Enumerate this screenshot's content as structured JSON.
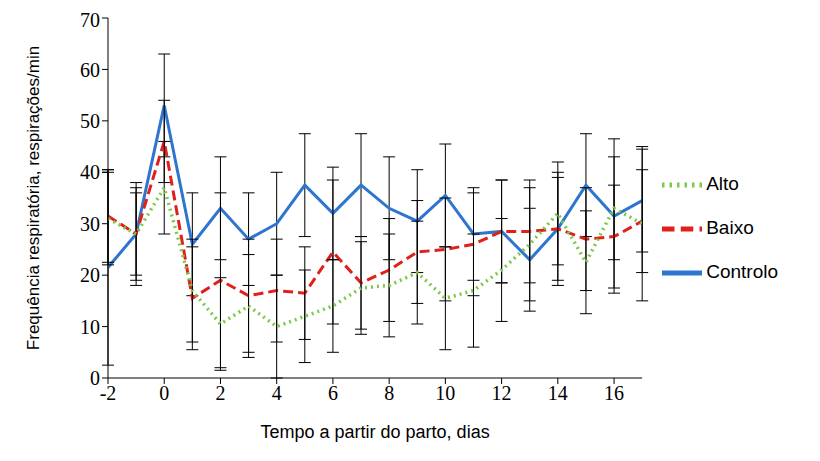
{
  "chart_data": {
    "type": "line",
    "x_label": "Tempo a partir do parto, dias",
    "y_label": "Frequência respiratória, respirações/min",
    "x": [
      -2,
      -1,
      0,
      1,
      2,
      3,
      4,
      5,
      6,
      7,
      8,
      9,
      10,
      11,
      12,
      13,
      14,
      15,
      16,
      17
    ],
    "xlim": [
      -2,
      17
    ],
    "xticks": [
      -2,
      0,
      2,
      4,
      6,
      8,
      10,
      12,
      14,
      16
    ],
    "ylim": [
      0,
      70
    ],
    "yticks": [
      0,
      10,
      20,
      30,
      40,
      50,
      60,
      70
    ],
    "grid": false,
    "legend": "right",
    "series": [
      {
        "name": "Controlo",
        "color": "#2E75D0",
        "line_style": "solid",
        "marker": "none",
        "values": [
          21.5,
          28,
          53,
          26,
          33,
          27,
          30,
          37.5,
          32,
          37.5,
          33,
          30.5,
          35.5,
          28,
          28.5,
          23,
          29,
          37.5,
          31.5,
          34.5
        ],
        "error": [
          19,
          9,
          10,
          10,
          10,
          9,
          10,
          10,
          9,
          10,
          10,
          10,
          10,
          9,
          10,
          10,
          11,
          10,
          15,
          10
        ]
      },
      {
        "name": "Baixo",
        "color": "#E0201B",
        "line_style": "dashed",
        "marker": "none",
        "values": [
          31.5,
          28,
          46,
          15.5,
          19,
          16,
          17,
          16.5,
          24.5,
          18.5,
          21,
          24.5,
          25,
          26,
          28.5,
          28.5,
          29,
          27,
          27.5,
          30.5
        ],
        "error": [
          9,
          10,
          8,
          10,
          17,
          11,
          10,
          9,
          14,
          9,
          10,
          10,
          10,
          10,
          10,
          10,
          10,
          10,
          10,
          10
        ]
      },
      {
        "name": "Alto",
        "color": "#7CC84A",
        "line_style": "dotted",
        "marker": "none",
        "values": [
          31,
          28,
          37,
          17,
          10.5,
          14,
          10,
          12,
          14,
          17.5,
          18,
          20.5,
          15.5,
          17,
          21,
          26,
          32,
          22.5,
          33,
          30
        ],
        "error": [
          9,
          8,
          9,
          10,
          9,
          10,
          10,
          9,
          9,
          9,
          10,
          10,
          10,
          11,
          10,
          11,
          10,
          10,
          10,
          15
        ]
      }
    ]
  }
}
